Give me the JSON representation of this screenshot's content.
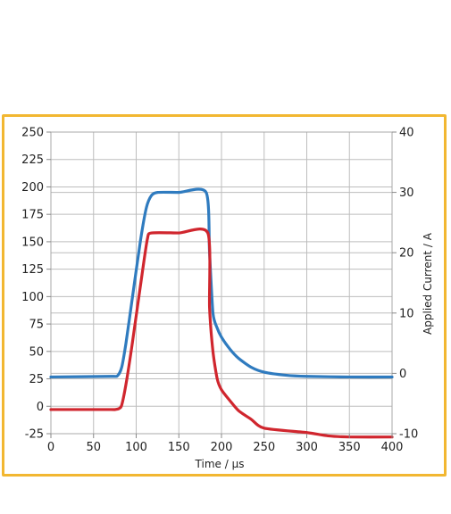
{
  "chart_data": {
    "type": "line",
    "xlabel": "Time / μs",
    "y2label": "Applied Current / A",
    "xlim": [
      0,
      400
    ],
    "ylim": [
      -25,
      250
    ],
    "y2lim": [
      -10,
      40
    ],
    "xticks": [
      0,
      50,
      100,
      150,
      200,
      250,
      300,
      350,
      400
    ],
    "yticks": [
      -25,
      0,
      25,
      50,
      75,
      100,
      125,
      150,
      175,
      200,
      225,
      250
    ],
    "y2ticks": [
      -10,
      0,
      10,
      20,
      30,
      40
    ],
    "grid": true,
    "series": [
      {
        "axis": "right",
        "color": "#2f7bbf",
        "x": [
          0,
          70,
          78,
          83,
          88,
          95,
          105,
          112,
          118,
          125,
          150,
          182,
          186,
          190,
          195,
          200,
          210,
          220,
          235,
          250,
          275,
          300,
          350,
          400
        ],
        "y": [
          -0.6,
          -0.5,
          -0.4,
          1,
          5,
          12,
          22,
          27.5,
          29.5,
          30,
          30,
          30,
          20,
          10,
          7.5,
          6,
          4,
          2.5,
          1,
          0.2,
          -0.3,
          -0.5,
          -0.6,
          -0.6
        ]
      },
      {
        "axis": "left",
        "color": "#d0262e",
        "x": [
          0,
          70,
          75,
          80,
          83,
          88,
          95,
          105,
          113,
          118,
          150,
          184,
          186,
          190,
          195,
          200,
          210,
          220,
          235,
          250,
          300,
          325,
          350,
          400
        ],
        "y": [
          -3,
          -3,
          -3,
          -2,
          1,
          20,
          55,
          110,
          152,
          158,
          158,
          158,
          90,
          50,
          25,
          15,
          5,
          -4,
          -12,
          -20,
          -24,
          -27,
          -28,
          -28
        ]
      }
    ]
  }
}
